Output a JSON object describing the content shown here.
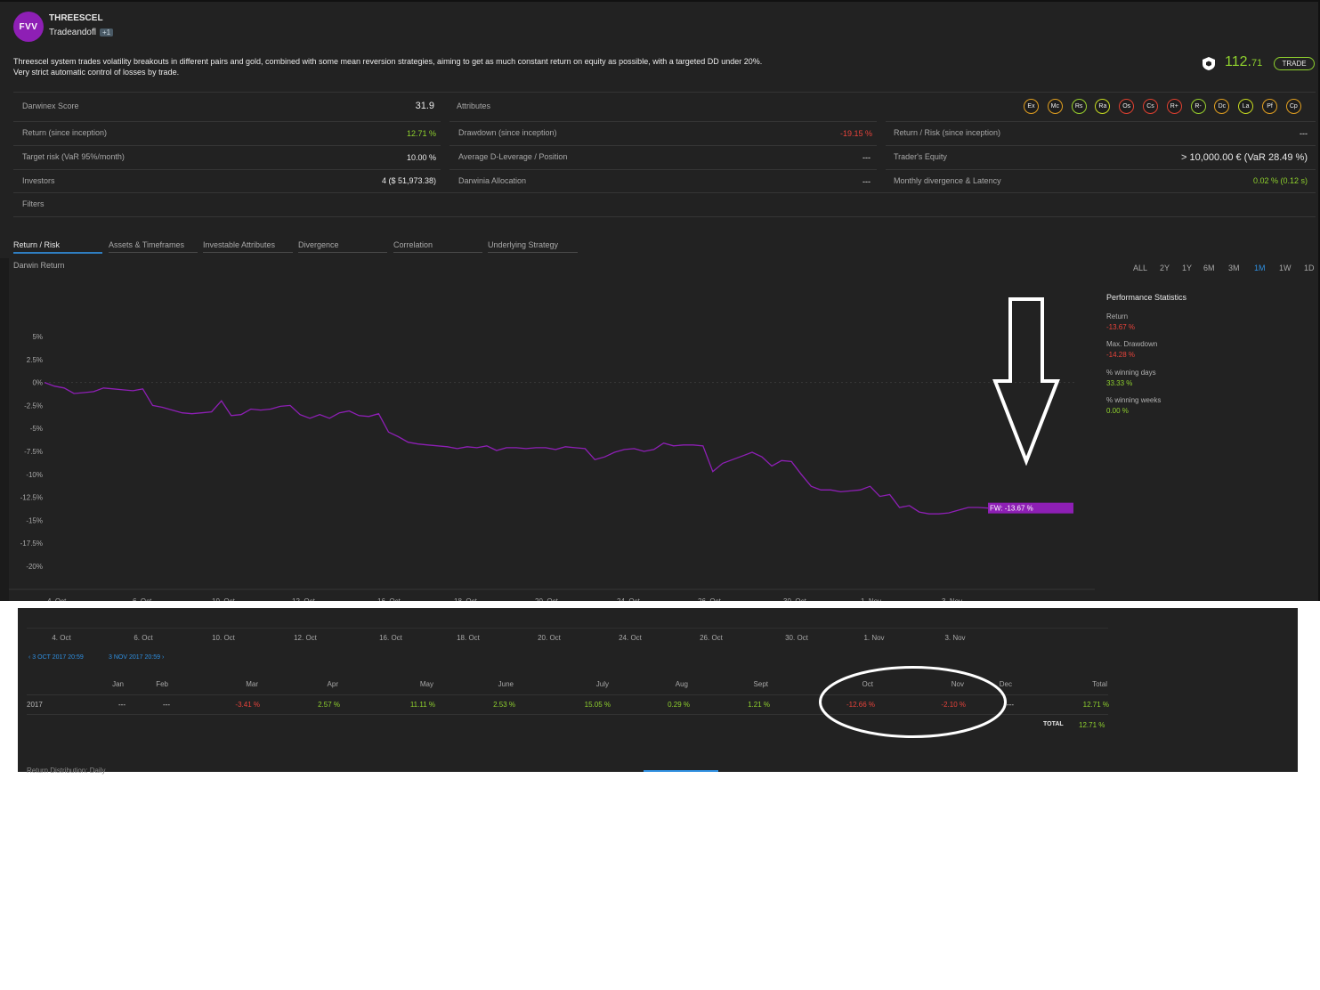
{
  "header": {
    "avatar_text": "FVV",
    "darwin_name": "THREESCEL",
    "trader_name": "Tradeandofl",
    "trader_badge": "+1",
    "description_line1": "Threescel system trades volatility breakouts in different pairs and gold, combined with some mean reversion strategies, aiming to get as much constant return on equity as possible, with a targeted DD under 20%.",
    "description_line2": "Very strict automatic control of losses by trade.",
    "quote_int": "112.",
    "quote_dec": "71",
    "trade_label": "TRADE"
  },
  "stats": {
    "score_label": "Darwinex Score",
    "score_value": "31.9",
    "attributes_label": "Attributes",
    "return_label": "Return (since inception)",
    "return_value": "12.71 %",
    "drawdown_label": "Drawdown (since inception)",
    "drawdown_value": "-19.15 %",
    "return_risk_label": "Return / Risk (since inception)",
    "return_risk_value": "---",
    "target_risk_label": "Target risk (VaR 95%/month)",
    "target_risk_value": "10.00 %",
    "leverage_label": "Average D-Leverage / Position",
    "leverage_value": "---",
    "equity_label": "Trader's Equity",
    "equity_value": "> 10,000.00 € (VaR 28.49 %)",
    "investors_label": "Investors",
    "investors_value": "4 ($ 51,973.38)",
    "allocation_label": "Darwinia Allocation",
    "allocation_value": "---",
    "divergence_label": "Monthly divergence & Latency",
    "divergence_value": "0.02 % (0.12 s)",
    "filters_label": "Filters"
  },
  "attributes": [
    {
      "code": "Ex",
      "color": "#e2a020"
    },
    {
      "code": "Mc",
      "color": "#e2a020"
    },
    {
      "code": "Rs",
      "color": "#9ad12e"
    },
    {
      "code": "Ra",
      "color": "#c8dc20"
    },
    {
      "code": "Os",
      "color": "#e04030"
    },
    {
      "code": "Cs",
      "color": "#e04030"
    },
    {
      "code": "R+",
      "color": "#e04030"
    },
    {
      "code": "R-",
      "color": "#9ad12e"
    },
    {
      "code": "Dc",
      "color": "#e2a020"
    },
    {
      "code": "La",
      "color": "#c8dc20"
    },
    {
      "code": "Pf",
      "color": "#e2a020"
    },
    {
      "code": "Cp",
      "color": "#e2a020"
    }
  ],
  "tabs": [
    "Return / Risk",
    "Assets & Timeframes",
    "Investable Attributes",
    "Divergence",
    "Correlation",
    "Underlying Strategy"
  ],
  "chart_title": "Darwin Return",
  "ranges": [
    "ALL",
    "2Y",
    "1Y",
    "6M",
    "3M",
    "1M",
    "1W",
    "1D"
  ],
  "active_range": "1M",
  "performance": {
    "title": "Performance Statistics",
    "return_label": "Return",
    "return_value": "-13.67 %",
    "dd_label": "Max. Drawdown",
    "dd_value": "-14.28 %",
    "win_days_label": "% winning days",
    "win_days_value": "33.33 %",
    "win_weeks_label": "% winning weeks",
    "win_weeks_value": "0.00 %"
  },
  "chart_data": {
    "type": "line",
    "y_ticks": [
      "5%",
      "2.5%",
      "0%",
      "-2.5%",
      "-5%",
      "-7.5%",
      "-10%",
      "-12.5%",
      "-15%",
      "-17.5%",
      "-20%"
    ],
    "ylim": [
      -20,
      5
    ],
    "x_ticks": [
      "4. Oct",
      "6. Oct",
      "10. Oct",
      "12. Oct",
      "16. Oct",
      "18. Oct",
      "20. Oct",
      "24. Oct",
      "26. Oct",
      "30. Oct",
      "1. Nov",
      "3. Nov"
    ],
    "x_index_range": [
      0,
      120
    ],
    "series": [
      {
        "name": "FW",
        "color": "#8e1fb5",
        "label": "FW: -13.67 %",
        "values": [
          0,
          -0.4,
          -0.6,
          -1.2,
          -1.1,
          -1.0,
          -0.6,
          -0.7,
          -0.8,
          -0.9,
          -0.7,
          -2.5,
          -2.7,
          -3.0,
          -3.3,
          -3.4,
          -3.3,
          -3.2,
          -2.0,
          -3.6,
          -3.5,
          -2.9,
          -3.0,
          -2.9,
          -2.6,
          -2.5,
          -3.5,
          -3.9,
          -3.5,
          -3.9,
          -3.3,
          -3.1,
          -3.6,
          -3.7,
          -3.4,
          -5.4,
          -5.9,
          -6.5,
          -6.7,
          -6.8,
          -6.9,
          -7.0,
          -7.2,
          -7.0,
          -7.1,
          -6.9,
          -7.4,
          -7.1,
          -7.1,
          -7.2,
          -7.1,
          -7.1,
          -7.3,
          -7.0,
          -7.1,
          -7.2,
          -8.4,
          -8.1,
          -7.6,
          -7.3,
          -7.2,
          -7.5,
          -7.3,
          -6.6,
          -6.9,
          -6.8,
          -6.8,
          -6.9,
          -9.7,
          -8.8,
          -8.4,
          -8.0,
          -7.6,
          -8.1,
          -9.1,
          -8.5,
          -8.6,
          -10.0,
          -11.3,
          -11.7,
          -11.7,
          -11.9,
          -11.8,
          -11.7,
          -11.3,
          -12.4,
          -12.2,
          -13.6,
          -13.4,
          -14.1,
          -14.3,
          -14.3,
          -14.2,
          -13.9,
          -13.6,
          -13.6,
          -13.67
        ]
      }
    ]
  },
  "bottom": {
    "x_ticks": [
      "4. Oct",
      "6. Oct",
      "10. Oct",
      "12. Oct",
      "16. Oct",
      "18. Oct",
      "20. Oct",
      "24. Oct",
      "26. Oct",
      "30. Oct",
      "1. Nov",
      "3. Nov"
    ],
    "date_from": "3 OCT 2017 20:59",
    "date_to": "3 NOV 2017 20:59",
    "months": [
      "Jan",
      "Feb",
      "Mar",
      "Apr",
      "May",
      "June",
      "July",
      "Aug",
      "Sept",
      "Oct",
      "Nov",
      "Dec",
      "Total"
    ],
    "year": "2017",
    "values": [
      "---",
      "---",
      "-3.41 %",
      "2.57 %",
      "11.11 %",
      "2.53 %",
      "15.05 %",
      "0.29 %",
      "1.21 %",
      "-12.66 %",
      "-2.10 %",
      "---",
      "12.71 %"
    ],
    "total_label": "TOTAL",
    "total_value": "12.71 %",
    "distribution_label": "Return Distribution: Daily"
  },
  "colors": {
    "positive": "#8fd12e",
    "negative": "#e8433b",
    "accent": "#2f8fe0",
    "series": "#8e1fb5"
  }
}
